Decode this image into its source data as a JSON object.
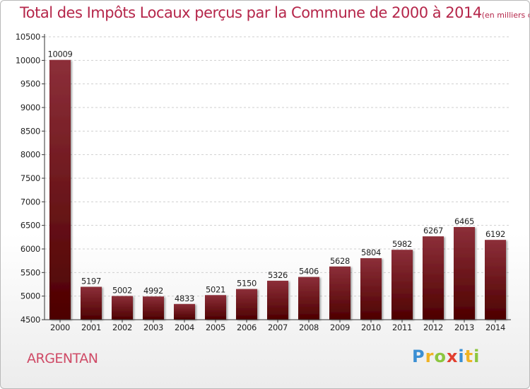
{
  "page": {
    "title": "Total des Impôts Locaux perçus par la Commune de 2000 à 2014",
    "title_unit": "(en milliers d'€)",
    "commune": "ARGENTAN",
    "logo_letters": [
      "P",
      "r",
      "o",
      "x",
      "i",
      "t",
      "i"
    ]
  },
  "colors": {
    "title": "#b5264a",
    "bar_top": "#8c2f39",
    "bar_bottom": "#4d0000",
    "commune": "#cf4a66"
  },
  "chart_data": {
    "type": "bar",
    "title": "Total des Impôts Locaux perçus par la Commune de 2000 à 2014",
    "categories": [
      "2000",
      "2001",
      "2002",
      "2003",
      "2004",
      "2005",
      "2006",
      "2007",
      "2008",
      "2009",
      "2010",
      "2011",
      "2012",
      "2013",
      "2014"
    ],
    "values": [
      10009,
      5197,
      5002,
      4992,
      4833,
      5021,
      5150,
      5326,
      5406,
      5628,
      5804,
      5982,
      6267,
      6465,
      6192
    ],
    "ylim": [
      4500,
      10500
    ],
    "yticks": [
      4500,
      5000,
      5500,
      6000,
      6500,
      7000,
      7500,
      8000,
      8500,
      9000,
      9500,
      10000,
      10500
    ],
    "grid": "horizontal dashed",
    "legend": "none"
  }
}
